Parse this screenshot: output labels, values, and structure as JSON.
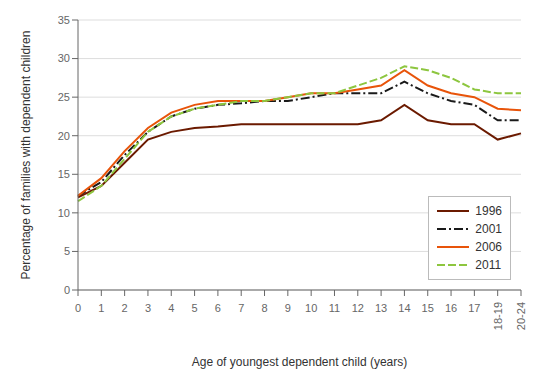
{
  "chart_data": {
    "type": "line",
    "xlabel": "Age of youngest dependent child (years)",
    "ylabel": "Percentage of families with dependent children",
    "categories": [
      "0",
      "1",
      "2",
      "3",
      "4",
      "5",
      "6",
      "7",
      "8",
      "9",
      "10",
      "11",
      "12",
      "13",
      "14",
      "15",
      "16",
      "17",
      "18-19",
      "20-24"
    ],
    "series": [
      {
        "name": "1996",
        "color": "#6B1A00",
        "line_style": "solid",
        "values": [
          12.0,
          13.5,
          16.5,
          19.5,
          20.5,
          21.0,
          21.2,
          21.5,
          21.5,
          21.5,
          21.5,
          21.5,
          21.5,
          22.0,
          24.0,
          22.0,
          21.5,
          21.5,
          19.5,
          20.3
        ]
      },
      {
        "name": "2001",
        "color": "#1a1a1a",
        "line_style": "dashdot",
        "values": [
          12.2,
          14.0,
          17.5,
          20.5,
          22.5,
          23.5,
          24.0,
          24.2,
          24.5,
          24.5,
          25.0,
          25.5,
          25.5,
          25.5,
          27.0,
          25.5,
          24.5,
          24.0,
          22.0,
          22.0
        ]
      },
      {
        "name": "2006",
        "color": "#E8540A",
        "line_style": "solid",
        "values": [
          12.2,
          14.5,
          18.0,
          21.0,
          23.0,
          24.0,
          24.5,
          24.5,
          24.5,
          25.0,
          25.5,
          25.5,
          26.0,
          26.5,
          28.5,
          26.5,
          25.5,
          25.0,
          23.5,
          23.3
        ]
      },
      {
        "name": "2011",
        "color": "#8DC63F",
        "line_style": "dashed",
        "values": [
          11.5,
          13.5,
          17.0,
          20.5,
          22.5,
          23.5,
          24.0,
          24.5,
          24.5,
          25.0,
          25.5,
          25.5,
          26.5,
          27.5,
          29.0,
          28.5,
          27.5,
          26.0,
          25.5,
          25.5
        ]
      }
    ],
    "ylim": [
      0,
      35
    ],
    "yticks": [
      0,
      5,
      10,
      15,
      20,
      25,
      30,
      35
    ],
    "grid": true,
    "legend": "lower right"
  }
}
